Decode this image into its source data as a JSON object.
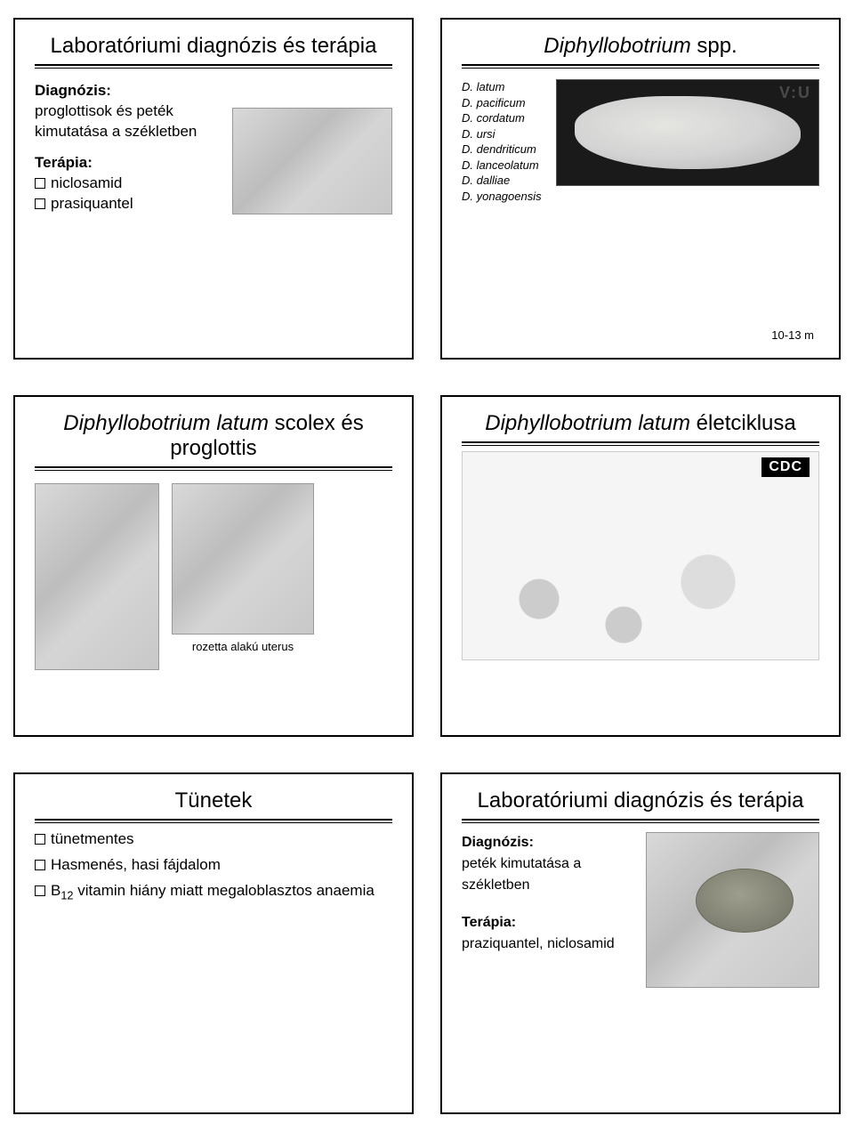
{
  "slides": {
    "s1": {
      "title": "Laboratóriumi diagnózis és terápia",
      "diag_label": "Diagnózis:",
      "diag_text": "proglottisok és peték kimutatása a székletben",
      "ther_label": "Terápia:",
      "ther_items": [
        "niclosamid",
        "prasiquantel"
      ]
    },
    "s2": {
      "title_it": "Diphyllobotrium",
      "title_rest": " spp.",
      "species": [
        "D. latum",
        "D. pacificum",
        "D. cordatum",
        "D. ursi",
        "D. dendriticum",
        "D. lanceolatum",
        "D. dalliae",
        "D. yonagoensis"
      ],
      "length_note": "10-13 m"
    },
    "s3": {
      "title_it": "Diphyllobotrium latum",
      "title_rest": " scolex és proglottis",
      "caption": "rozetta alakú uterus"
    },
    "s4": {
      "title_it": "Diphyllobotrium latum",
      "title_rest": " életciklusa",
      "cdc_label": "CDC"
    },
    "s5": {
      "title": "Tünetek",
      "items": [
        "tünetmentes",
        "Hasmenés, hasi fájdalom",
        "B12 vitamin hiány miatt megaloblasztos anaemia"
      ]
    },
    "s6": {
      "title": "Laboratóriumi diagnózis és terápia",
      "diag_label": "Diagnózis:",
      "diag_text": "peték kimutatása a székletben",
      "ther_label": "Terápia:",
      "ther_text": "praziquantel, niclosamid"
    }
  },
  "colors": {
    "border": "#000000",
    "background": "#ffffff",
    "img_placeholder": "#cfcfcf"
  }
}
